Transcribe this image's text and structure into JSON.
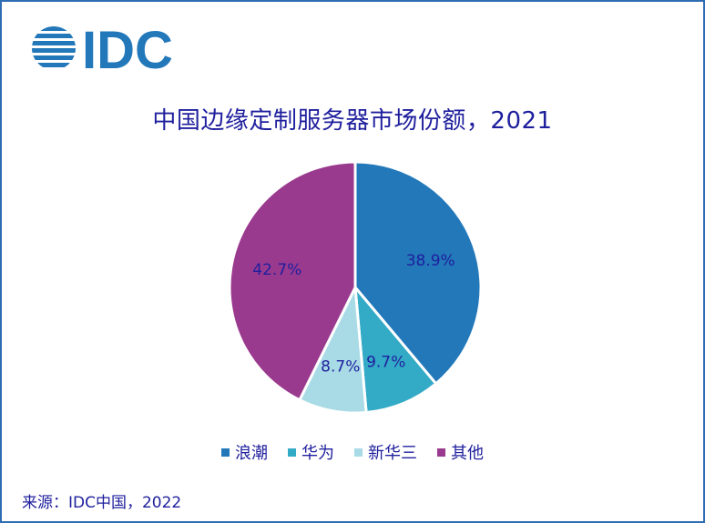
{
  "logo_text": "IDC",
  "source": "来源：IDC中国，2022",
  "chart_data": {
    "type": "pie",
    "title": "中国边缘定制服务器市场份额，2021",
    "categories": [
      "浪潮",
      "华为",
      "新华三",
      "其他"
    ],
    "values": [
      38.9,
      9.7,
      8.7,
      42.7
    ],
    "value_labels": [
      "38.9%",
      "9.7%",
      "8.7%",
      "42.7%"
    ],
    "colors": [
      "#2278b9",
      "#33aac6",
      "#a8dbe6",
      "#9a3a8e"
    ],
    "start_angle_deg": 0,
    "direction": "clockwise",
    "legend_position": "bottom"
  }
}
